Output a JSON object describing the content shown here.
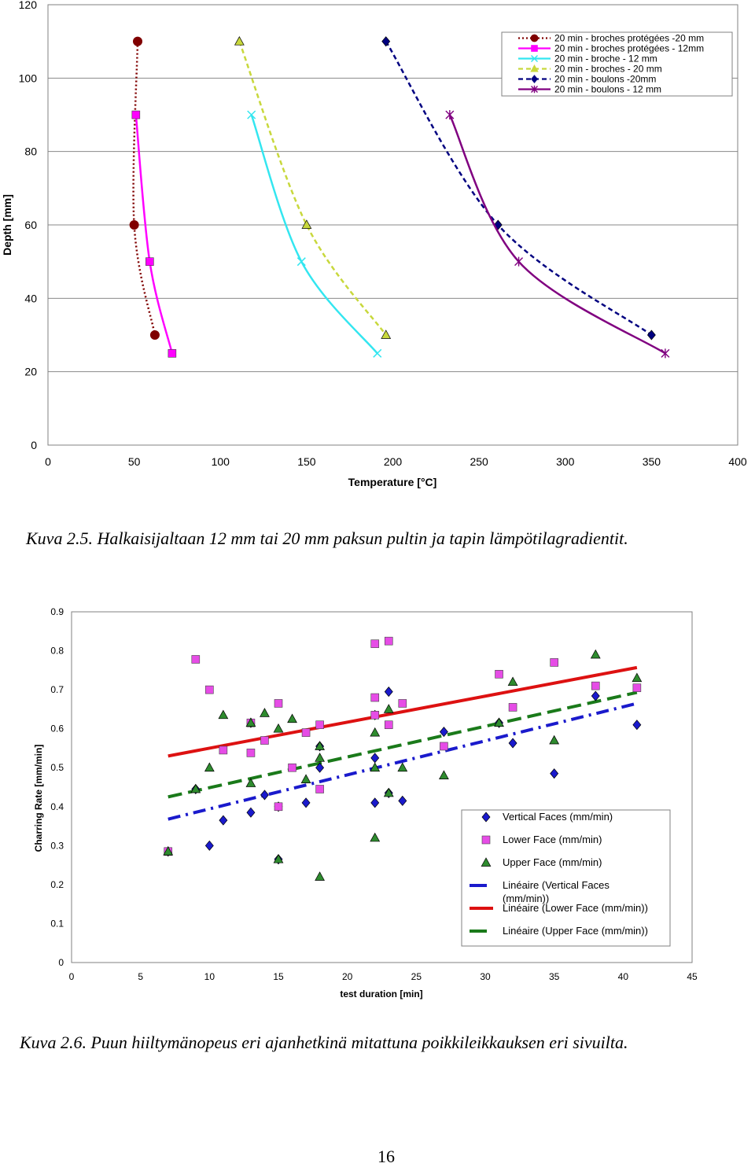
{
  "captions": {
    "figure1": "Kuva 2.5. Halkaisijaltaan 12 mm tai 20 mm paksun pultin ja tapin lämpötilagradientit.",
    "figure2": "Kuva 2.6. Puun hiiltymänopeus eri ajanhetkinä mitattuna poikkileikkauksen eri sivuilta."
  },
  "page_number": "16",
  "chart_data": [
    {
      "type": "line",
      "title": "",
      "xlabel": "Temperature [°C]",
      "ylabel": "Depth [mm]",
      "xlim": [
        0,
        400
      ],
      "ylim": [
        0,
        120
      ],
      "xticks": [
        "0",
        "50",
        "100",
        "150",
        "200",
        "250",
        "300",
        "350",
        "400"
      ],
      "yticks": [
        "0",
        "20",
        "40",
        "60",
        "80",
        "100",
        "120"
      ],
      "grid": "horizontal",
      "legend_position": "top-right",
      "series": [
        {
          "name": "20 min - broches protégées -20 mm",
          "color": "#800000",
          "marker": "circle",
          "dash": "dotted",
          "points": [
            [
              52,
              110
            ],
            [
              50,
              60
            ],
            [
              62,
              30
            ]
          ]
        },
        {
          "name": "20  min - broches protégées - 12mm",
          "color": "#ff00ff",
          "marker": "square",
          "dash": "solid",
          "points": [
            [
              51,
              90
            ],
            [
              59,
              50
            ],
            [
              72,
              25
            ]
          ]
        },
        {
          "name": "20 min - broche - 12 mm",
          "color": "#33e6f0",
          "marker": "x",
          "dash": "solid",
          "points": [
            [
              118,
              90
            ],
            [
              147,
              50
            ],
            [
              191,
              25
            ]
          ]
        },
        {
          "name": "20 min - broches - 20 mm",
          "color": "#c8d83c",
          "marker": "triangle",
          "dash": "dashed",
          "points": [
            [
              111,
              110
            ],
            [
              150,
              60
            ],
            [
              196,
              30
            ]
          ]
        },
        {
          "name": "20 min - boulons -20mm",
          "color": "#000080",
          "marker": "diamond",
          "dash": "dashed",
          "points": [
            [
              196,
              110
            ],
            [
              261,
              60
            ],
            [
              350,
              30
            ]
          ]
        },
        {
          "name": "20  min - boulons - 12 mm",
          "color": "#800080",
          "marker": "star",
          "dash": "solid",
          "points": [
            [
              233,
              90
            ],
            [
              273,
              50
            ],
            [
              358,
              25
            ]
          ]
        }
      ]
    },
    {
      "type": "scatter",
      "title": "",
      "xlabel": "test duration [min]",
      "ylabel": "Charring Rate [mm/min]",
      "xlim": [
        0,
        45
      ],
      "ylim": [
        0,
        0.9
      ],
      "xticks": [
        "0",
        "5",
        "10",
        "15",
        "20",
        "25",
        "30",
        "35",
        "40",
        "45"
      ],
      "yticks": [
        "0",
        "0.1",
        "0.2",
        "0.3",
        "0.4",
        "0.5",
        "0.6",
        "0.7",
        "0.8",
        "0.9"
      ],
      "grid": "off",
      "legend_position": "bottom-right",
      "series": [
        {
          "name": "Vertical Faces  (mm/min)",
          "marker": "diamond",
          "color": "#1a1acc",
          "points": [
            [
              7,
              0.285
            ],
            [
              9,
              0.445
            ],
            [
              10,
              0.3
            ],
            [
              11,
              0.365
            ],
            [
              13,
              0.385
            ],
            [
              13,
              0.615
            ],
            [
              14,
              0.43
            ],
            [
              15,
              0.4
            ],
            [
              15,
              0.265
            ],
            [
              17,
              0.41
            ],
            [
              18,
              0.5
            ],
            [
              18,
              0.555
            ],
            [
              22,
              0.41
            ],
            [
              22,
              0.525
            ],
            [
              22,
              0.635
            ],
            [
              23,
              0.695
            ],
            [
              23,
              0.435
            ],
            [
              24,
              0.415
            ],
            [
              27,
              0.592
            ],
            [
              31,
              0.615
            ],
            [
              32,
              0.563
            ],
            [
              35,
              0.485
            ],
            [
              38,
              0.684
            ],
            [
              41,
              0.61
            ]
          ]
        },
        {
          "name": "Lower Face (mm/min)",
          "marker": "square",
          "color": "#e64ce6",
          "points": [
            [
              7,
              0.285
            ],
            [
              9,
              0.778
            ],
            [
              10,
              0.7
            ],
            [
              11,
              0.545
            ],
            [
              13,
              0.538
            ],
            [
              13,
              0.615
            ],
            [
              14,
              0.57
            ],
            [
              15,
              0.665
            ],
            [
              15,
              0.4
            ],
            [
              16,
              0.5
            ],
            [
              17,
              0.59
            ],
            [
              18,
              0.61
            ],
            [
              18,
              0.445
            ],
            [
              22,
              0.818
            ],
            [
              22,
              0.68
            ],
            [
              22,
              0.635
            ],
            [
              23,
              0.825
            ],
            [
              23,
              0.61
            ],
            [
              24,
              0.665
            ],
            [
              27,
              0.555
            ],
            [
              31,
              0.74
            ],
            [
              32,
              0.655
            ],
            [
              35,
              0.77
            ],
            [
              38,
              0.71
            ],
            [
              41,
              0.705
            ]
          ]
        },
        {
          "name": "Upper Face (mm/min)",
          "marker": "triangle",
          "color": "#2e8b2e",
          "points": [
            [
              7,
              0.285
            ],
            [
              9,
              0.445
            ],
            [
              10,
              0.5
            ],
            [
              11,
              0.635
            ],
            [
              13,
              0.46
            ],
            [
              13,
              0.615
            ],
            [
              14,
              0.64
            ],
            [
              15,
              0.6
            ],
            [
              15,
              0.265
            ],
            [
              16,
              0.625
            ],
            [
              17,
              0.47
            ],
            [
              18,
              0.555
            ],
            [
              18,
              0.525
            ],
            [
              18,
              0.22
            ],
            [
              22,
              0.59
            ],
            [
              22,
              0.5
            ],
            [
              22,
              0.32
            ],
            [
              23,
              0.65
            ],
            [
              23,
              0.435
            ],
            [
              24,
              0.5
            ],
            [
              27,
              0.48
            ],
            [
              31,
              0.615
            ],
            [
              32,
              0.72
            ],
            [
              35,
              0.57
            ],
            [
              38,
              0.79
            ],
            [
              41,
              0.73
            ]
          ]
        },
        {
          "name": "Linéaire (Vertical Faces (mm/min))",
          "type": "trend",
          "color": "#1a1acc",
          "dash": "dash-dot",
          "points": [
            [
              7,
              0.368
            ],
            [
              41,
              0.665
            ]
          ]
        },
        {
          "name": "Linéaire (Lower Face (mm/min))",
          "type": "trend",
          "color": "#dd1111",
          "dash": "solid",
          "points": [
            [
              7,
              0.53
            ],
            [
              41,
              0.757
            ]
          ]
        },
        {
          "name": "Linéaire (Upper Face (mm/min))",
          "type": "trend",
          "color": "#1a7a1a",
          "dash": "dashed",
          "points": [
            [
              7,
              0.425
            ],
            [
              41,
              0.693
            ]
          ]
        }
      ]
    }
  ]
}
